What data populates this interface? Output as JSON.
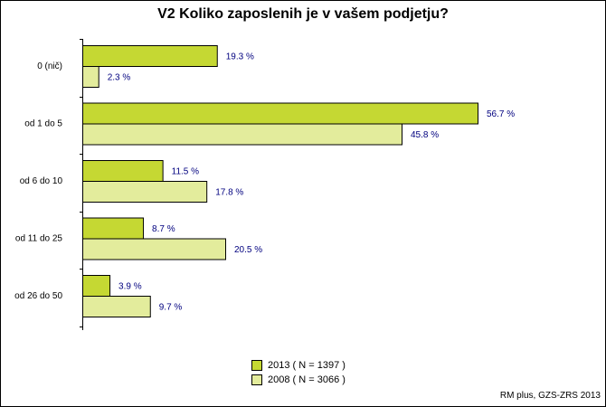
{
  "colors": {
    "series_2013": "#c5d833",
    "series_2008": "#e3ec9c",
    "value_label": "#00007f"
  },
  "chart_data": {
    "type": "bar",
    "orientation": "horizontal",
    "title": "V2 Koliko zaposlenih je v vašem podjetju?",
    "categories": [
      "0 (nič)",
      "od 1 do 5",
      "od 6 do 10",
      "od 11 do 25",
      "od 26 do 50"
    ],
    "series": [
      {
        "name": "2013 ( N = 1397 )",
        "values": [
          19.3,
          56.7,
          11.5,
          8.7,
          3.9
        ],
        "labels": [
          "19.3 %",
          "56.7 %",
          "11.5 %",
          "8.7 %",
          "3.9 %"
        ]
      },
      {
        "name": "2008 ( N = 3066 )",
        "values": [
          2.3,
          45.8,
          17.8,
          20.5,
          9.7
        ],
        "labels": [
          "2.3 %",
          "45.8 %",
          "17.8 %",
          "20.5 %",
          "9.7 %"
        ]
      }
    ],
    "xlim": [
      0,
      56.7
    ],
    "legend": "bottom-center",
    "grid": false
  },
  "source": "RM plus, GZS-ZRS 2013"
}
